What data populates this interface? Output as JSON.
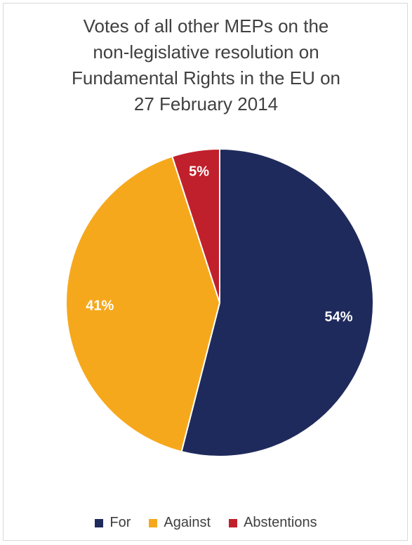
{
  "chart_data": {
    "type": "pie",
    "title": "Votes of all other MEPs on the non-legislative resolution on Fundamental Rights in the EU on 27 February 2014",
    "title_lines": [
      "Votes of all other MEPs on the",
      "non-legislative resolution on",
      "Fundamental Rights in the EU on",
      "27 February 2014"
    ],
    "slices": [
      {
        "name": "For",
        "value": 54,
        "label": "54%",
        "color": "#1f2a5c"
      },
      {
        "name": "Against",
        "value": 41,
        "label": "41%",
        "color": "#f6a81c"
      },
      {
        "name": "Abstentions",
        "value": 5,
        "label": "5%",
        "color": "#c0202b"
      }
    ],
    "legend_position": "bottom"
  }
}
